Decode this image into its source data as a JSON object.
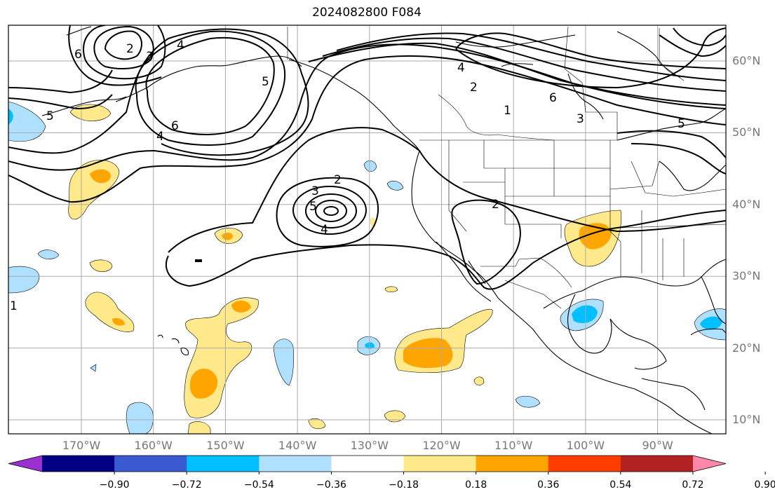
{
  "title": "2024082800 F084",
  "map": {
    "lat_labels": [
      {
        "text": "60°N",
        "lat": 60
      },
      {
        "text": "50°N",
        "lat": 50
      },
      {
        "text": "40°N",
        "lat": 40
      },
      {
        "text": "30°N",
        "lat": 30
      },
      {
        "text": "20°N",
        "lat": 20
      },
      {
        "text": "10°N",
        "lat": 10
      }
    ],
    "lon_labels": [
      {
        "text": "170°W",
        "lon": -170
      },
      {
        "text": "160°W",
        "lon": -160
      },
      {
        "text": "150°W",
        "lon": -150
      },
      {
        "text": "140°W",
        "lon": -140
      },
      {
        "text": "130°W",
        "lon": -130
      },
      {
        "text": "120°W",
        "lon": -120
      },
      {
        "text": "110°W",
        "lon": -110
      },
      {
        "text": "100°W",
        "lon": -100
      },
      {
        "text": "90°W",
        "lon": -90
      }
    ],
    "contour_labels": [
      "2",
      "3",
      "4",
      "5",
      "6",
      "1"
    ]
  },
  "colorbar": {
    "ticks": [
      "−0.90",
      "−0.72",
      "−0.54",
      "−0.36",
      "−0.18",
      "0.18",
      "0.36",
      "0.54",
      "0.72",
      "0.90"
    ],
    "colors": [
      "#9b30d0",
      "#000080",
      "#3a5bcf",
      "#00bfff",
      "#b0e0ff",
      "#ffffff",
      "#ffe98a",
      "#ffa500",
      "#ff3c00",
      "#b22222",
      "#ff88aa"
    ]
  }
}
